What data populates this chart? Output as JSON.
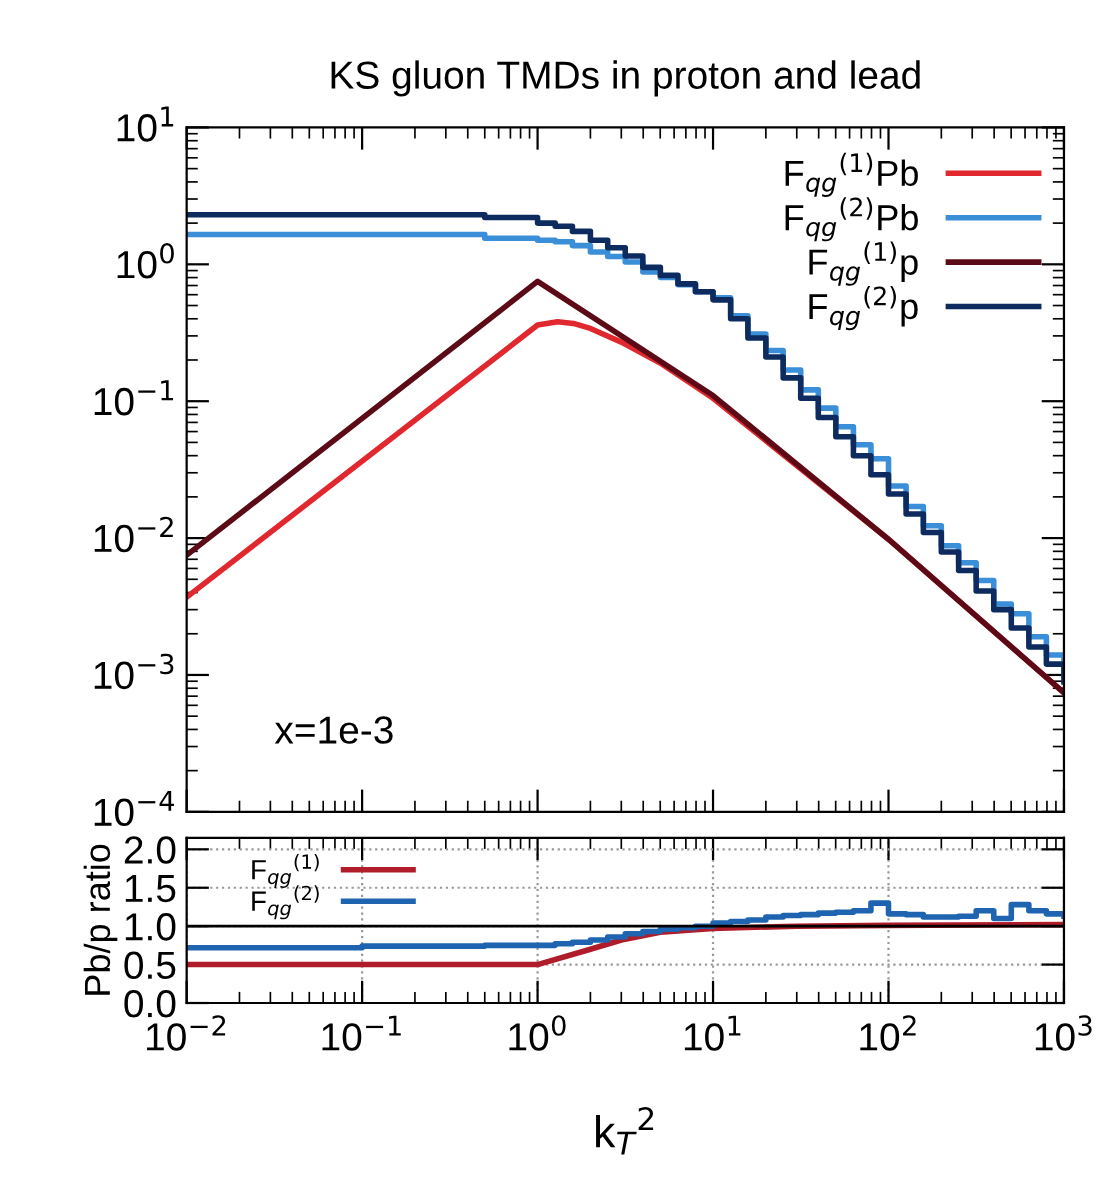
{
  "chart_data": [
    {
      "type": "line",
      "title": "KS gluon TMDs in proton and lead",
      "log": "xy",
      "xlim": [
        0.01,
        1000
      ],
      "ylim": [
        0.0001,
        10
      ],
      "xticks": [
        0.01,
        0.1,
        1,
        10,
        100,
        1000
      ],
      "yticks": [
        {
          "value": 0.0001,
          "label": "10$^{−4}$"
        },
        {
          "value": 0.001,
          "label": "10$^{−3}$"
        },
        {
          "value": 0.01,
          "label": "10$^{−2}$"
        },
        {
          "value": 0.1,
          "label": "10$^{−1}$"
        },
        {
          "value": 1,
          "label": "10$^{0}$"
        },
        {
          "value": 10,
          "label": "10$^{1}$"
        }
      ],
      "tick_labels": "y",
      "grid": false,
      "legend": "top right",
      "annotations": [
        "x=1e-3"
      ],
      "series": [
        {
          "name": "F$_{qg}$$^{(1)}$Pb",
          "color": "#e0282e",
          "x": [
            0.01,
            1,
            1.3,
            1.6,
            2,
            3,
            5,
            10,
            100,
            1000
          ],
          "values": [
            0.0037,
            0.36,
            0.38,
            0.37,
            0.34,
            0.27,
            0.19,
            0.105,
            0.0098,
            0.00074
          ]
        },
        {
          "name": "F$_{qg}$$^{(2)}$Pb",
          "type": "step",
          "color": "#3a8fd8",
          "x": [
            0.01,
            0.1,
            0.5,
            1,
            1.26,
            1.58,
            2,
            2.51,
            3.16,
            3.98,
            5.01,
            6.31,
            7.94,
            10,
            12.6,
            15.8,
            20,
            25.1,
            31.6,
            39.8,
            50.1,
            63.1,
            79.4,
            100,
            126,
            158,
            200,
            251,
            316,
            398,
            501,
            631,
            794,
            1000
          ],
          "values": [
            1.65,
            1.65,
            1.55,
            1.5,
            1.46,
            1.37,
            1.23,
            1.14,
            1.04,
            0.88,
            0.8,
            0.71,
            0.63,
            0.57,
            0.42,
            0.31,
            0.235,
            0.169,
            0.121,
            0.089,
            0.065,
            0.048,
            0.038,
            0.024,
            0.017,
            0.0123,
            0.0088,
            0.0066,
            0.0049,
            0.0033,
            0.0028,
            0.0019,
            0.0014,
            0.001
          ]
        },
        {
          "name": "F$_{qg}$$^{(1)}$p",
          "color": "#5c0a16",
          "x": [
            0.01,
            1,
            10,
            100,
            1000
          ],
          "values": [
            0.0075,
            0.75,
            0.11,
            0.0098,
            0.00074
          ]
        },
        {
          "name": "F$_{qg}$$^{(2)}$p",
          "type": "step",
          "color": "#0d2b5e",
          "x": [
            0.01,
            0.1,
            0.5,
            1,
            1.26,
            1.58,
            2,
            2.51,
            3.16,
            3.98,
            5.01,
            6.31,
            7.94,
            10,
            12.6,
            15.8,
            20,
            25.1,
            31.6,
            39.8,
            50.1,
            63.1,
            79.4,
            100,
            126,
            158,
            200,
            251,
            316,
            398,
            501,
            631,
            794,
            1000
          ],
          "values": [
            2.3,
            2.3,
            2.2,
            2.0,
            1.9,
            1.74,
            1.5,
            1.32,
            1.15,
            0.95,
            0.83,
            0.72,
            0.63,
            0.55,
            0.4,
            0.29,
            0.21,
            0.148,
            0.105,
            0.076,
            0.055,
            0.04,
            0.029,
            0.021,
            0.015,
            0.011,
            0.0079,
            0.0058,
            0.0041,
            0.003,
            0.0022,
            0.0016,
            0.0012,
            0.00089
          ]
        }
      ]
    },
    {
      "type": "line",
      "log": "x",
      "xlabel": "k$_{T}$$^{2}$",
      "ylabel": "Pb/p ratio",
      "xlim": [
        0.01,
        1000
      ],
      "ylim": [
        0,
        2.15
      ],
      "xticks": [
        {
          "value": 0.01,
          "label": "10$^{−2}$"
        },
        {
          "value": 0.1,
          "label": "10$^{−1}$"
        },
        {
          "value": 1,
          "label": "10$^{0}$"
        },
        {
          "value": 10,
          "label": "10$^{1}$"
        },
        {
          "value": 100,
          "label": "10$^{2}$"
        },
        {
          "value": 1000,
          "label": "10$^{3}$"
        }
      ],
      "yticks": [
        {
          "value": 0,
          "label": "0.0"
        },
        {
          "value": 0.5,
          "label": "0.5"
        },
        {
          "value": 1,
          "label": "1.0"
        },
        {
          "value": 1.5,
          "label": "1.5"
        },
        {
          "value": 2,
          "label": "2.0"
        }
      ],
      "grid": true,
      "legend": "top left",
      "ref_lines": [
        {
          "axis": "y",
          "value": 1,
          "color": "#000000"
        }
      ],
      "series": [
        {
          "name": "F$_{qg}$$^{(1)}$",
          "color": "#b01c2a",
          "x": [
            0.01,
            1,
            2,
            3,
            5,
            10,
            30,
            100,
            1000
          ],
          "values": [
            0.5,
            0.5,
            0.7,
            0.82,
            0.92,
            0.97,
            1.0,
            1.01,
            1.02
          ]
        },
        {
          "name": "F$_{qg}$$^{(2)}$",
          "type": "step",
          "color": "#1f64b0",
          "x": [
            0.01,
            0.1,
            0.5,
            1,
            1.26,
            1.58,
            2,
            2.51,
            3.16,
            3.98,
            5.01,
            6.31,
            7.94,
            10,
            12.6,
            15.8,
            20,
            25.1,
            31.6,
            39.8,
            50.1,
            63.1,
            79.4,
            100,
            126,
            158,
            200,
            251,
            316,
            398,
            501,
            631,
            794,
            1000
          ],
          "values": [
            0.72,
            0.74,
            0.75,
            0.75,
            0.77,
            0.79,
            0.82,
            0.86,
            0.9,
            0.93,
            0.96,
            0.98,
            1.0,
            1.04,
            1.06,
            1.08,
            1.12,
            1.14,
            1.15,
            1.17,
            1.18,
            1.2,
            1.3,
            1.16,
            1.15,
            1.12,
            1.12,
            1.13,
            1.2,
            1.1,
            1.28,
            1.2,
            1.16,
            1.13
          ]
        }
      ]
    }
  ]
}
